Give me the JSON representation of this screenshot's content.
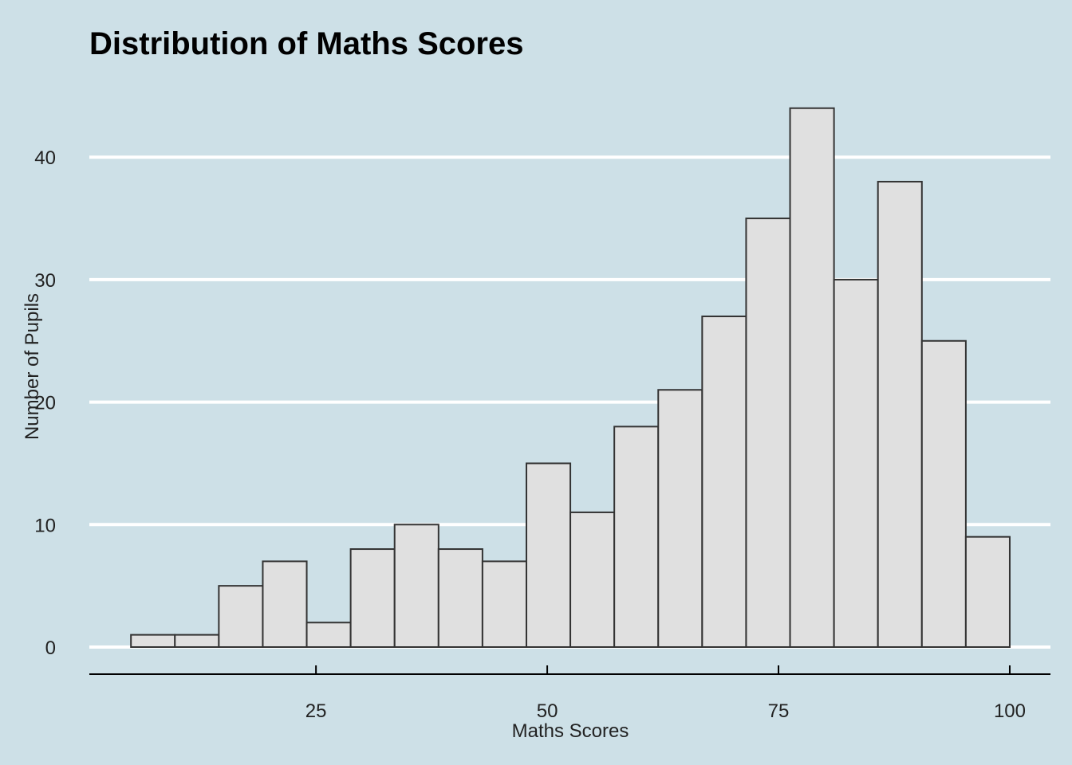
{
  "chart_data": {
    "type": "bar",
    "title": "Distribution of Maths Scores",
    "xlabel": "Maths Scores",
    "ylabel": "Number of Pupils",
    "bin_width": 4.75,
    "bins": [
      {
        "x0": 5.0,
        "x1": 9.75,
        "count": 1
      },
      {
        "x0": 9.75,
        "x1": 14.5,
        "count": 1
      },
      {
        "x0": 14.5,
        "x1": 19.25,
        "count": 5
      },
      {
        "x0": 19.25,
        "x1": 24.0,
        "count": 7
      },
      {
        "x0": 24.0,
        "x1": 28.75,
        "count": 2
      },
      {
        "x0": 28.75,
        "x1": 33.5,
        "count": 8
      },
      {
        "x0": 33.5,
        "x1": 38.25,
        "count": 10
      },
      {
        "x0": 38.25,
        "x1": 43.0,
        "count": 8
      },
      {
        "x0": 43.0,
        "x1": 47.75,
        "count": 7
      },
      {
        "x0": 47.75,
        "x1": 52.5,
        "count": 15
      },
      {
        "x0": 52.5,
        "x1": 57.25,
        "count": 11
      },
      {
        "x0": 57.25,
        "x1": 62.0,
        "count": 18
      },
      {
        "x0": 62.0,
        "x1": 66.75,
        "count": 21
      },
      {
        "x0": 66.75,
        "x1": 71.5,
        "count": 27
      },
      {
        "x0": 71.5,
        "x1": 76.25,
        "count": 35
      },
      {
        "x0": 76.25,
        "x1": 81.0,
        "count": 44
      },
      {
        "x0": 81.0,
        "x1": 85.75,
        "count": 30
      },
      {
        "x0": 85.75,
        "x1": 90.5,
        "count": 38
      },
      {
        "x0": 90.5,
        "x1": 95.25,
        "count": 25
      },
      {
        "x0": 95.25,
        "x1": 100.0,
        "count": 9
      }
    ],
    "xticks": [
      25,
      50,
      75,
      100
    ],
    "yticks": [
      0,
      10,
      20,
      30,
      40
    ],
    "xlim": [
      0.5,
      104.4
    ],
    "ylim": [
      0,
      46
    ],
    "grid": "horizontal-major",
    "colors": {
      "background": "#cde0e7",
      "bar_fill": "#e0e0e0",
      "bar_stroke": "#333333",
      "grid": "#ffffff",
      "axis": "#000000"
    }
  }
}
